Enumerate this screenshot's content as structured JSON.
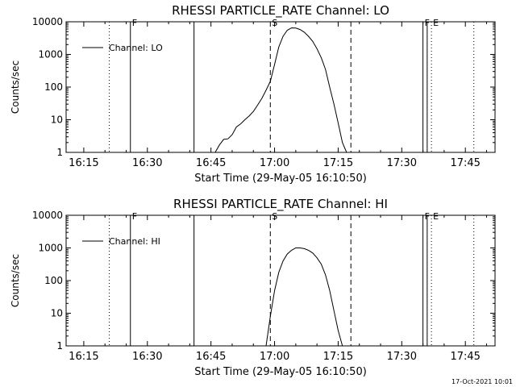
{
  "footer_timestamp": "17-Oct-2021 10:01",
  "chart_data": [
    {
      "type": "line",
      "title": "RHESSI PARTICLE_RATE Channel: LO",
      "xlabel": "Start Time (29-May-05 16:10:50)",
      "ylabel": "Counts/sec",
      "y_scale": "log",
      "ylim": [
        1,
        10000
      ],
      "xlim": [
        "16:10:50",
        "17:52:00"
      ],
      "x_ticks": [
        "16:15",
        "16:30",
        "16:45",
        "17:00",
        "17:15",
        "17:30",
        "17:45"
      ],
      "y_ticks": [
        "1",
        "10",
        "100",
        "1000",
        "10000"
      ],
      "legend": {
        "placement": "top-left",
        "entries": [
          "Channel: LO"
        ]
      },
      "series": [
        {
          "name": "Channel: LO",
          "x": [
            "16:46",
            "16:47",
            "16:48",
            "16:49",
            "16:50",
            "16:51",
            "16:52",
            "16:53",
            "16:54",
            "16:55",
            "16:56",
            "16:57",
            "16:58",
            "16:59",
            "17:00",
            "17:01",
            "17:02",
            "17:03",
            "17:04",
            "17:05",
            "17:06",
            "17:07",
            "17:08",
            "17:09",
            "17:10",
            "17:11",
            "17:12",
            "17:13",
            "17:14",
            "17:15",
            "17:16",
            "17:17"
          ],
          "y": [
            1.0,
            1.7,
            2.5,
            2.6,
            3.5,
            6.0,
            7.5,
            10,
            13,
            18,
            28,
            45,
            80,
            150,
            500,
            1700,
            3600,
            5500,
            6500,
            6400,
            5800,
            4800,
            3600,
            2500,
            1500,
            800,
            350,
            100,
            30,
            8,
            2,
            1
          ]
        }
      ],
      "events": [
        {
          "label": "",
          "time": "16:21",
          "style": "dotted"
        },
        {
          "label": "F",
          "time": "16:26",
          "style": "solid"
        },
        {
          "label": "",
          "time": "16:41",
          "style": "solid"
        },
        {
          "label": "S",
          "time": "16:59",
          "style": "dashed"
        },
        {
          "label": "",
          "time": "17:18",
          "style": "dashed"
        },
        {
          "label": "F",
          "time": "17:35",
          "style": "solid"
        },
        {
          "label": "",
          "time": "17:36",
          "style": "solid"
        },
        {
          "label": "E",
          "time": "17:37",
          "style": "dotted"
        },
        {
          "label": "",
          "time": "17:47",
          "style": "dotted"
        }
      ]
    },
    {
      "type": "line",
      "title": "RHESSI PARTICLE_RATE Channel: HI",
      "xlabel": "Start Time (29-May-05 16:10:50)",
      "ylabel": "Counts/sec",
      "y_scale": "log",
      "ylim": [
        1,
        10000
      ],
      "xlim": [
        "16:10:50",
        "17:52:00"
      ],
      "x_ticks": [
        "16:15",
        "16:30",
        "16:45",
        "17:00",
        "17:15",
        "17:30",
        "17:45"
      ],
      "y_ticks": [
        "1",
        "10",
        "100",
        "1000",
        "10000"
      ],
      "legend": {
        "placement": "top-left",
        "entries": [
          "Channel: HI"
        ]
      },
      "series": [
        {
          "name": "Channel: HI",
          "x": [
            "16:58",
            "16:59",
            "17:00",
            "17:01",
            "17:02",
            "17:03",
            "17:04",
            "17:05",
            "17:06",
            "17:07",
            "17:08",
            "17:09",
            "17:10",
            "17:11",
            "17:12",
            "17:13",
            "17:14",
            "17:15",
            "17:16"
          ],
          "y": [
            1.0,
            8,
            50,
            180,
            400,
            650,
            850,
            1000,
            1000,
            950,
            850,
            700,
            500,
            320,
            150,
            50,
            12,
            3,
            1
          ]
        }
      ],
      "events": [
        {
          "label": "",
          "time": "16:21",
          "style": "dotted"
        },
        {
          "label": "F",
          "time": "16:26",
          "style": "solid"
        },
        {
          "label": "",
          "time": "16:41",
          "style": "solid"
        },
        {
          "label": "S",
          "time": "16:59",
          "style": "dashed"
        },
        {
          "label": "",
          "time": "17:18",
          "style": "dashed"
        },
        {
          "label": "F",
          "time": "17:35",
          "style": "solid"
        },
        {
          "label": "",
          "time": "17:36",
          "style": "solid"
        },
        {
          "label": "E",
          "time": "17:37",
          "style": "dotted"
        },
        {
          "label": "",
          "time": "17:47",
          "style": "dotted"
        }
      ]
    }
  ]
}
